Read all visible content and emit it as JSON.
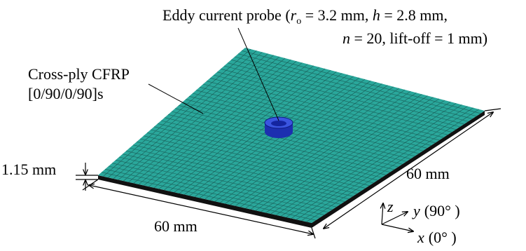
{
  "probe_label": {
    "line1": [
      "Eddy current probe (",
      "r",
      "o",
      " = 3.2 mm, ",
      "h",
      " = 2.8 mm,"
    ],
    "line2": [
      "n",
      " = 20, lift-off = 1 mm)"
    ]
  },
  "plate_label": {
    "line1": "Cross-ply CFRP",
    "line2": "[0/90/0/90]s"
  },
  "dimensions": {
    "thickness": "1.15 mm",
    "width_right": "60 mm",
    "width_bottom": "60 mm"
  },
  "axes": {
    "z": "z",
    "y": "y",
    "y_angle": "(90°  )",
    "x": "x",
    "x_angle": "(0°  )"
  }
}
